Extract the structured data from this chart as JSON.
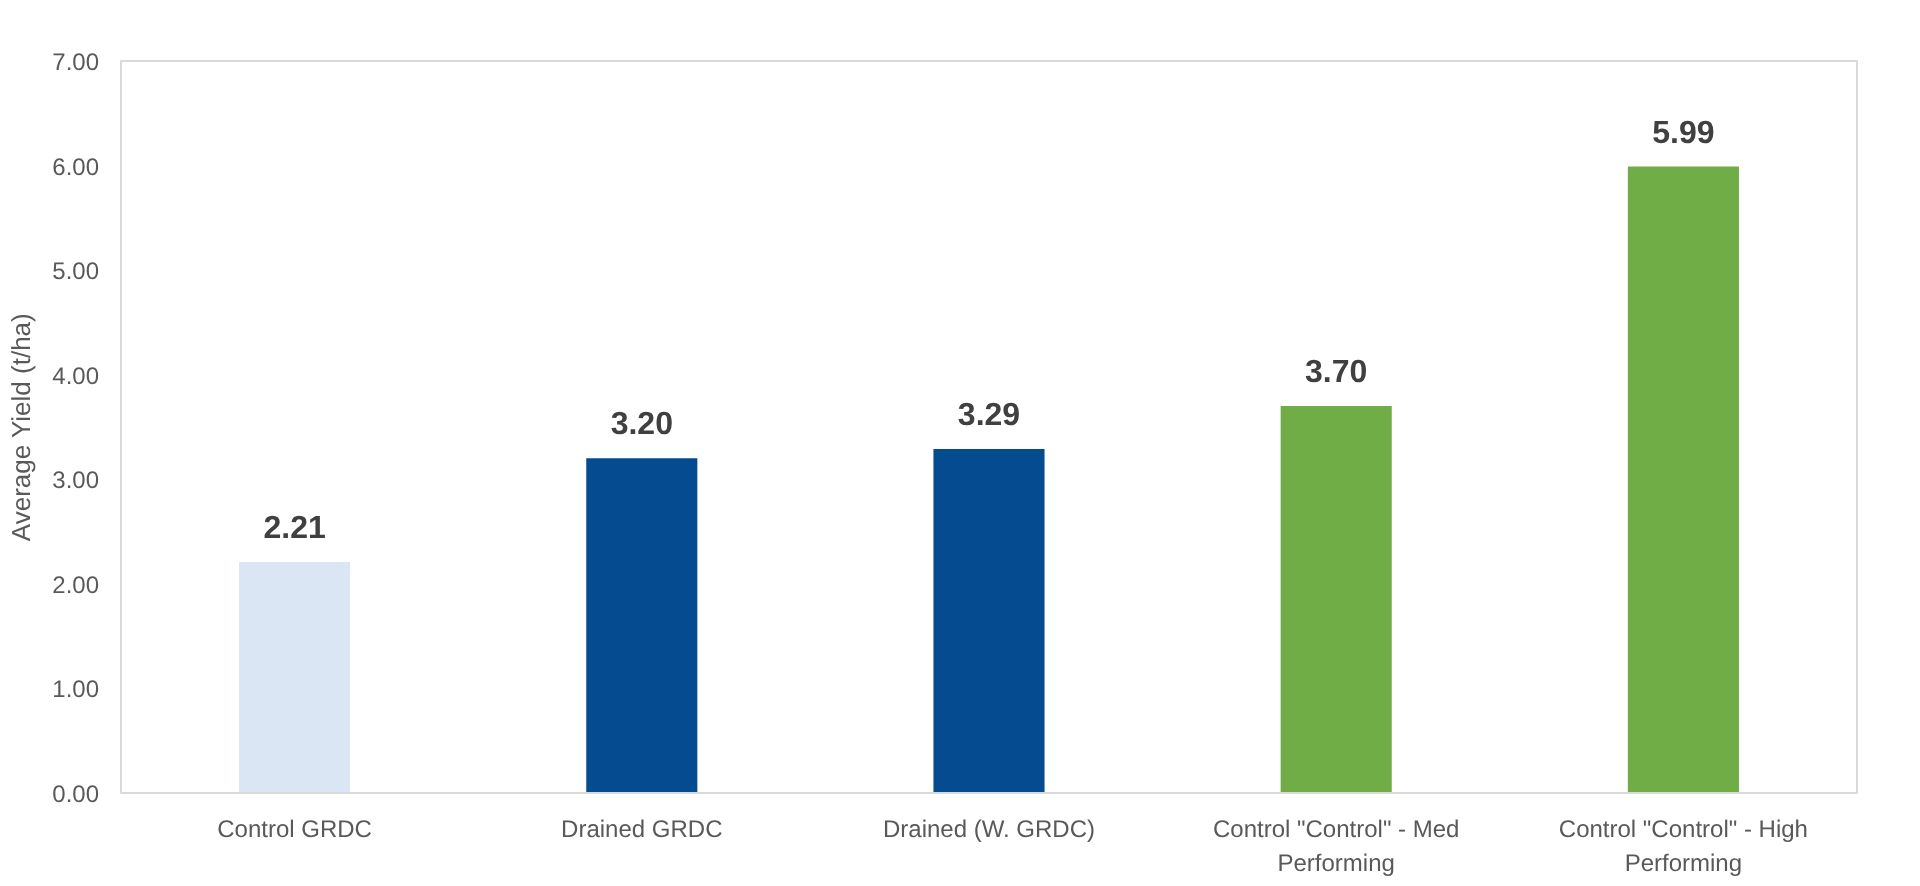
{
  "chart_data": {
    "type": "bar",
    "ylabel": "Average Yield (t/ha)",
    "categories": [
      "Control GRDC",
      "Drained GRDC",
      "Drained (W. GRDC)",
      "Control \"Control\" - Med Performing",
      "Control \"Control\" - High Performing"
    ],
    "values": [
      2.21,
      3.2,
      3.29,
      3.7,
      5.99
    ],
    "colors": [
      "#dae6f3",
      "#044b8f",
      "#044b8f",
      "#70ad47",
      "#70ad47"
    ],
    "value_labels": [
      "2.21",
      "3.20",
      "3.29",
      "3.70",
      "5.99"
    ],
    "ylim": [
      0,
      7
    ],
    "yticks": [
      {
        "value": 0,
        "label": "0.00"
      },
      {
        "value": 1,
        "label": "1.00"
      },
      {
        "value": 2,
        "label": "2.00"
      },
      {
        "value": 3,
        "label": "3.00"
      },
      {
        "value": 4,
        "label": "4.00"
      },
      {
        "value": 5,
        "label": "5.00"
      },
      {
        "value": 6,
        "label": "6.00"
      },
      {
        "value": 7,
        "label": "7.00"
      }
    ],
    "grid": false
  }
}
